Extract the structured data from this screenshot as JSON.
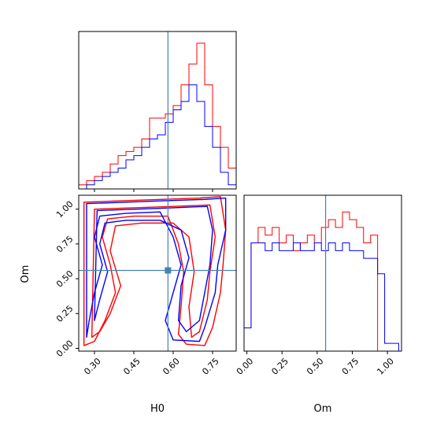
{
  "chart_data": {
    "type": "corner",
    "parameters": [
      "H0",
      "Om"
    ],
    "truth": {
      "H0": 0.58,
      "Om": 0.56
    },
    "colors": {
      "red_series": "#ff0000",
      "blue_series": "#0000ff",
      "truth_line": "#4682b4"
    },
    "panels": [
      {
        "id": "hist-H0",
        "type": "histogram",
        "xlim": [
          0.24,
          0.84
        ],
        "ticks": [
          0.3,
          0.45,
          0.6,
          0.75
        ],
        "bin_edges": [
          0.24,
          0.255,
          0.27,
          0.285,
          0.3,
          0.315,
          0.33,
          0.345,
          0.36,
          0.375,
          0.39,
          0.405,
          0.42,
          0.435,
          0.45,
          0.465,
          0.48,
          0.495,
          0.51,
          0.525,
          0.54,
          0.555,
          0.57,
          0.585,
          0.6,
          0.615,
          0.63,
          0.645,
          0.66,
          0.675,
          0.69,
          0.705,
          0.72,
          0.735,
          0.75,
          0.765,
          0.78,
          0.795,
          0.81,
          0.825,
          0.84
        ],
        "series": [
          {
            "color": "red",
            "values": [
              1,
              1,
              2,
              2,
              3,
              3,
              4,
              4,
              6,
              6,
              8,
              8,
              9,
              9,
              10,
              10,
              12,
              12,
              17,
              17,
              17,
              17,
              18,
              18,
              20,
              20,
              25,
              25,
              30,
              30,
              35,
              35,
              25,
              25,
              15,
              15,
              10,
              10,
              5,
              5
            ]
          },
          {
            "color": "blue",
            "values": [
              0,
              0,
              1,
              1,
              2,
              2,
              3,
              3,
              4,
              4,
              5,
              5,
              7,
              7,
              8,
              8,
              10,
              10,
              12,
              12,
              13,
              13,
              16,
              16,
              19,
              19,
              21,
              21,
              25,
              25,
              21,
              21,
              15,
              15,
              10,
              10,
              4,
              4,
              1,
              1
            ]
          }
        ]
      },
      {
        "id": "hist-Om",
        "type": "histogram",
        "xlim": [
          -0.02,
          1.1
        ],
        "ticks": [
          0.0,
          0.25,
          0.5,
          0.75,
          1.0
        ],
        "tick_labels": [
          "0.00",
          "0.25",
          "0.50",
          "0.75",
          "1.00"
        ],
        "bin_edges": [
          -0.02,
          0.03,
          0.08,
          0.13,
          0.18,
          0.23,
          0.28,
          0.33,
          0.38,
          0.43,
          0.48,
          0.53,
          0.58,
          0.63,
          0.68,
          0.73,
          0.78,
          0.83,
          0.88,
          0.93,
          0.98,
          1.03,
          1.08
        ],
        "series": [
          {
            "color": "red",
            "values": [
              3,
              14,
              16,
              15,
              16,
              14,
              15,
              13,
              14,
              15,
              14,
              16,
              17,
              16,
              18,
              17,
              16,
              14,
              15,
              0,
              0,
              0
            ]
          },
          {
            "color": "blue",
            "values": [
              3,
              14,
              14,
              13,
              14,
              13,
              13,
              14,
              13,
              13,
              14,
              13,
              14,
              13,
              14,
              13,
              13,
              12,
              12,
              10,
              1,
              1
            ]
          }
        ]
      },
      {
        "id": "contour-H0-Om",
        "type": "contour",
        "xlabel": "H0",
        "ylabel": "Om",
        "xlim": [
          0.24,
          0.84
        ],
        "ylim": [
          -0.02,
          1.1
        ],
        "xticks": [
          0.3,
          0.45,
          0.6,
          0.75
        ],
        "yticks": [
          0.0,
          0.25,
          0.5,
          0.75,
          1.0
        ],
        "ytick_labels": [
          "0.00",
          "0.25",
          "0.50",
          "0.75",
          "1.00"
        ],
        "contours": [
          {
            "color": "red",
            "points": [
              [
                0.26,
                1.05
              ],
              [
                0.4,
                1.06
              ],
              [
                0.55,
                1.07
              ],
              [
                0.7,
                1.08
              ],
              [
                0.78,
                1.09
              ],
              [
                0.8,
                0.85
              ],
              [
                0.79,
                0.6
              ],
              [
                0.78,
                0.4
              ],
              [
                0.75,
                0.15
              ],
              [
                0.72,
                0.02
              ],
              [
                0.65,
                0.03
              ],
              [
                0.62,
                0.1
              ],
              [
                0.63,
                0.3
              ],
              [
                0.64,
                0.55
              ],
              [
                0.62,
                0.75
              ],
              [
                0.58,
                0.95
              ],
              [
                0.45,
                0.95
              ],
              [
                0.35,
                0.93
              ],
              [
                0.33,
                0.8
              ],
              [
                0.36,
                0.6
              ],
              [
                0.38,
                0.4
              ],
              [
                0.34,
                0.2
              ],
              [
                0.3,
                0.05
              ],
              [
                0.26,
                0.02
              ]
            ]
          },
          {
            "color": "red",
            "points": [
              [
                0.3,
                1.0
              ],
              [
                0.45,
                1.01
              ],
              [
                0.6,
                1.02
              ],
              [
                0.74,
                1.03
              ],
              [
                0.76,
                0.8
              ],
              [
                0.74,
                0.55
              ],
              [
                0.73,
                0.35
              ],
              [
                0.7,
                0.12
              ],
              [
                0.67,
                0.08
              ],
              [
                0.66,
                0.3
              ],
              [
                0.68,
                0.55
              ],
              [
                0.66,
                0.8
              ],
              [
                0.6,
                0.9
              ],
              [
                0.48,
                0.9
              ],
              [
                0.38,
                0.88
              ],
              [
                0.36,
                0.7
              ],
              [
                0.4,
                0.45
              ],
              [
                0.36,
                0.25
              ],
              [
                0.32,
                0.12
              ],
              [
                0.29,
                0.08
              ]
            ]
          },
          {
            "color": "blue",
            "points": [
              [
                0.27,
                1.04
              ],
              [
                0.42,
                1.05
              ],
              [
                0.56,
                1.06
              ],
              [
                0.72,
                1.07
              ],
              [
                0.8,
                1.08
              ],
              [
                0.8,
                0.85
              ],
              [
                0.77,
                0.6
              ],
              [
                0.76,
                0.4
              ],
              [
                0.72,
                0.15
              ],
              [
                0.7,
                0.05
              ],
              [
                0.6,
                0.06
              ],
              [
                0.57,
                0.2
              ],
              [
                0.6,
                0.4
              ],
              [
                0.63,
                0.6
              ],
              [
                0.6,
                0.8
              ],
              [
                0.55,
                0.98
              ],
              [
                0.42,
                0.97
              ],
              [
                0.32,
                0.95
              ],
              [
                0.3,
                0.8
              ],
              [
                0.33,
                0.6
              ],
              [
                0.3,
                0.4
              ],
              [
                0.28,
                0.2
              ],
              [
                0.27,
                0.08
              ]
            ]
          },
          {
            "color": "blue",
            "points": [
              [
                0.31,
                0.99
              ],
              [
                0.46,
                1.0
              ],
              [
                0.6,
                1.01
              ],
              [
                0.73,
                1.02
              ],
              [
                0.75,
                0.85
              ],
              [
                0.74,
                0.6
              ],
              [
                0.72,
                0.4
              ],
              [
                0.7,
                0.2
              ],
              [
                0.65,
                0.12
              ],
              [
                0.62,
                0.2
              ],
              [
                0.63,
                0.45
              ],
              [
                0.66,
                0.65
              ],
              [
                0.63,
                0.85
              ],
              [
                0.55,
                0.92
              ],
              [
                0.42,
                0.92
              ],
              [
                0.34,
                0.9
              ],
              [
                0.32,
                0.75
              ],
              [
                0.35,
                0.55
              ],
              [
                0.32,
                0.35
              ],
              [
                0.3,
                0.2
              ]
            ]
          }
        ]
      }
    ]
  }
}
